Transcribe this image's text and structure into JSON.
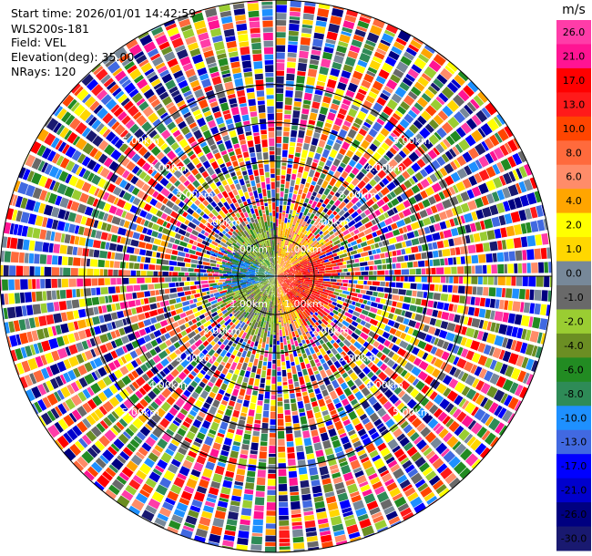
{
  "header": {
    "start_time": "Start time: 2026/01/01 14:42:59",
    "instrument": "WLS200s-181",
    "field": "Field: VEL",
    "elevation": "Elevation(deg): 35.00",
    "nrays": "NRays: 120"
  },
  "chart_data": {
    "type": "heatmap",
    "projection": "polar-ppi",
    "field": "VEL",
    "unit": "m/s",
    "range_rings_km": [
      1.0,
      2.0,
      3.0,
      4.0,
      5.0
    ],
    "range_ring_labels": [
      "1.00km",
      "2.00km",
      "3.00km",
      "4.00km",
      "5.00km"
    ],
    "max_range_km": 7.2,
    "n_rays": 120,
    "near_field_pattern": [
      {
        "azimuth_from": 0,
        "azimuth_to": 60,
        "description_free": true,
        "dominant_value": 3.0
      },
      {
        "azimuth_from": 60,
        "azimuth_to": 150,
        "dominant_value": 11.0
      },
      {
        "azimuth_from": 150,
        "azimuth_to": 180,
        "dominant_value": 3.0
      },
      {
        "azimuth_from": 180,
        "azimuth_to": 250,
        "dominant_value": -4.0
      },
      {
        "azimuth_from": 250,
        "azimuth_to": 300,
        "dominant_value": -10.0
      },
      {
        "azimuth_from": 300,
        "azimuth_to": 360,
        "dominant_value": -4.0
      }
    ],
    "near_field_extent_km": 1.6,
    "colorbar": {
      "unit": "m/s",
      "tick_labels": [
        "26.0",
        "21.0",
        "17.0",
        "13.0",
        "10.0",
        "8.0",
        "6.0",
        "4.0",
        "2.0",
        "1.0",
        "0.0",
        "-1.0",
        "-2.0",
        "-4.0",
        "-6.0",
        "-8.0",
        "-10.0",
        "-13.0",
        "-17.0",
        "-21.0",
        "-26.0",
        "-30.0"
      ],
      "bins": [
        {
          "color": "#ff3ca8"
        },
        {
          "color": "#ff1493"
        },
        {
          "color": "#ff0000"
        },
        {
          "color": "#ff1a1a"
        },
        {
          "color": "#ff4500"
        },
        {
          "color": "#ff6a3c"
        },
        {
          "color": "#ff8c69"
        },
        {
          "color": "#ffa500"
        },
        {
          "color": "#ffff00"
        },
        {
          "color": "#ffd700"
        },
        {
          "color": "#778899"
        },
        {
          "color": "#696969"
        },
        {
          "color": "#9acd32"
        },
        {
          "color": "#6b8e23"
        },
        {
          "color": "#228b22"
        },
        {
          "color": "#2e8b57"
        },
        {
          "color": "#1e90ff"
        },
        {
          "color": "#4169e1"
        },
        {
          "color": "#0000ff"
        },
        {
          "color": "#0000cd"
        },
        {
          "color": "#000080"
        },
        {
          "color": "#191970"
        }
      ]
    }
  }
}
